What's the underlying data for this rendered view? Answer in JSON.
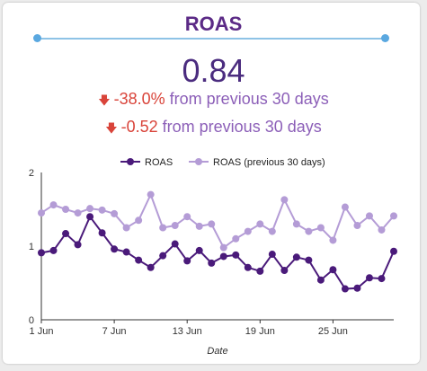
{
  "scorecard": {
    "title": "ROAS",
    "value": "0.84",
    "pct_change": "-38.0%",
    "abs_change": "-0.52",
    "comparison_text": "from previous 30 days",
    "arrow_icon": "arrow-down-icon",
    "colors": {
      "title": "#5b2a86",
      "negative": "#d9443a",
      "muted": "#8c5fb8"
    }
  },
  "chart_data": {
    "type": "line",
    "x": [
      1,
      2,
      3,
      4,
      5,
      6,
      7,
      8,
      9,
      10,
      11,
      12,
      13,
      14,
      15,
      16,
      17,
      18,
      19,
      20,
      21,
      22,
      23,
      24,
      25,
      26,
      27,
      28,
      29,
      30
    ],
    "x_tick_values": [
      1,
      7,
      13,
      19,
      25
    ],
    "x_tick_labels": [
      "1 Jun",
      "7 Jun",
      "13 Jun",
      "19 Jun",
      "25 Jun"
    ],
    "xlabel": "Date",
    "ylabel": "",
    "ylim": [
      0,
      2
    ],
    "y_ticks": [
      0,
      1,
      2
    ],
    "grid": false,
    "legend_position": "top-center",
    "series": [
      {
        "name": "ROAS",
        "color": "#4a1a7a",
        "values": [
          0.91,
          0.94,
          1.17,
          1.02,
          1.4,
          1.18,
          0.96,
          0.92,
          0.81,
          0.71,
          0.87,
          1.03,
          0.8,
          0.94,
          0.77,
          0.86,
          0.88,
          0.71,
          0.66,
          0.89,
          0.67,
          0.85,
          0.81,
          0.54,
          0.68,
          0.42,
          0.43,
          0.57,
          0.56,
          0.93
        ]
      },
      {
        "name": "ROAS (previous 30 days)",
        "color": "#b49cd6",
        "values": [
          1.45,
          1.56,
          1.5,
          1.45,
          1.51,
          1.49,
          1.44,
          1.25,
          1.35,
          1.7,
          1.25,
          1.28,
          1.4,
          1.27,
          1.3,
          0.98,
          1.1,
          1.2,
          1.3,
          1.2,
          1.63,
          1.3,
          1.2,
          1.25,
          1.08,
          1.53,
          1.28,
          1.41,
          1.22,
          1.41
        ]
      }
    ]
  }
}
